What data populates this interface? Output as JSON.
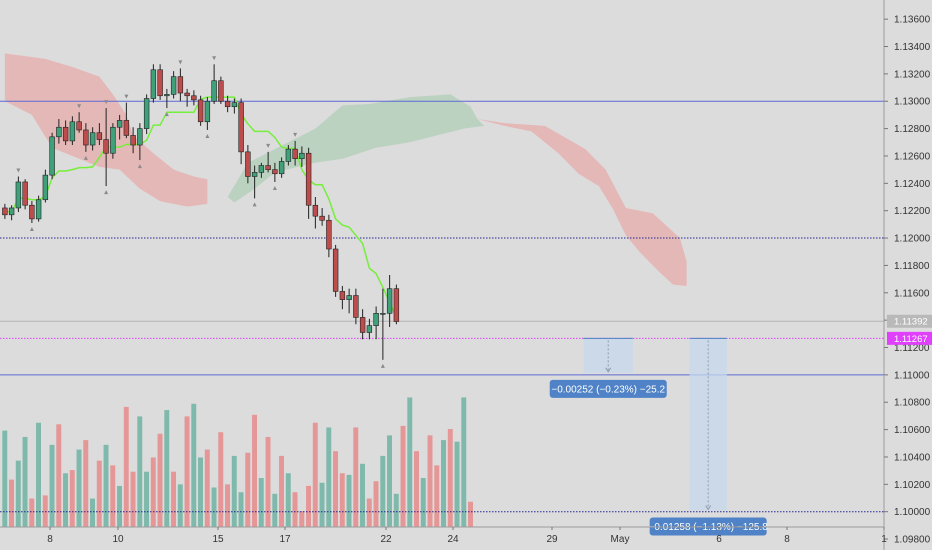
{
  "chart_data": {
    "type": "candlestick",
    "price_axis": {
      "labels": [
        "1.13600",
        "1.13400",
        "1.13200",
        "1.13000",
        "1.12800",
        "1.12600",
        "1.12400",
        "1.12200",
        "1.12000",
        "1.11800",
        "1.11600",
        "1.11400",
        "1.11200",
        "1.11000",
        "1.10800",
        "1.10600",
        "1.10400",
        "1.10200",
        "1.10000",
        "1.09800"
      ],
      "ylim": [
        1.0972,
        1.1374
      ]
    },
    "time_axis": {
      "labels": [
        "8",
        "10",
        "15",
        "17",
        "22",
        "24",
        "29",
        "May",
        "6",
        "8",
        "1"
      ]
    },
    "price_tags": [
      {
        "label": "1.11392",
        "value": 1.11392,
        "color": "#b9b9b9"
      },
      {
        "label": "1.11267",
        "value": 1.11267,
        "color": "#e040fb"
      }
    ],
    "horizontal_lines": [
      {
        "value": 1.13,
        "color": "#5b6ad6",
        "style": "solid"
      },
      {
        "value": 1.12,
        "color": "#22278f",
        "style": "dotted"
      },
      {
        "value": 1.11,
        "color": "#5b6ad6",
        "style": "solid"
      },
      {
        "value": 1.1,
        "color": "#22278f",
        "style": "dotted"
      },
      {
        "value": 1.11392,
        "color": "#b4b4b4",
        "style": "solid"
      },
      {
        "value": 1.11267,
        "color": "#e040fb",
        "style": "dotted"
      }
    ],
    "measurements": [
      {
        "label": "−0.00252 (−0.23%) −25.2",
        "from": 1.11267,
        "to": 1.11015,
        "bar_from": 44,
        "bar_to": 47
      },
      {
        "label": "−0.01258 (−1.13%) −125.8",
        "from": 1.11267,
        "to": 1.10009,
        "bar_from": 52,
        "bar_to": 54
      }
    ],
    "bars_total": 70,
    "candles": [
      [
        1.1222,
        1.1225,
        1.1214,
        1.1217
      ],
      [
        1.1217,
        1.1224,
        1.1213,
        1.1222
      ],
      [
        1.1222,
        1.1245,
        1.1219,
        1.1241
      ],
      [
        1.1241,
        1.1243,
        1.1221,
        1.1224
      ],
      [
        1.1224,
        1.1227,
        1.1211,
        1.1214
      ],
      [
        1.1214,
        1.1231,
        1.1212,
        1.1228
      ],
      [
        1.1228,
        1.125,
        1.1226,
        1.1246
      ],
      [
        1.1246,
        1.1277,
        1.1243,
        1.1274
      ],
      [
        1.1274,
        1.1287,
        1.1269,
        1.1281
      ],
      [
        1.1281,
        1.1286,
        1.1268,
        1.1271
      ],
      [
        1.1271,
        1.1289,
        1.1268,
        1.1285
      ],
      [
        1.1285,
        1.1292,
        1.1277,
        1.1279
      ],
      [
        1.1279,
        1.1284,
        1.1263,
        1.1268
      ],
      [
        1.1268,
        1.1281,
        1.1264,
        1.1277
      ],
      [
        1.1277,
        1.1284,
        1.1268,
        1.1272
      ],
      [
        1.1272,
        1.1295,
        1.1238,
        1.1262
      ],
      [
        1.1262,
        1.1284,
        1.1258,
        1.1281
      ],
      [
        1.1281,
        1.129,
        1.1272,
        1.1286
      ],
      [
        1.1286,
        1.1299,
        1.1273,
        1.1275
      ],
      [
        1.1275,
        1.1281,
        1.1262,
        1.1268
      ],
      [
        1.1268,
        1.1284,
        1.1257,
        1.128
      ],
      [
        1.128,
        1.1305,
        1.1276,
        1.1302
      ],
      [
        1.1302,
        1.1327,
        1.1299,
        1.1323
      ],
      [
        1.1323,
        1.1327,
        1.1301,
        1.1304
      ],
      [
        1.1304,
        1.1309,
        1.1295,
        1.1305
      ],
      [
        1.1305,
        1.1322,
        1.1302,
        1.1318
      ],
      [
        1.1318,
        1.1324,
        1.13,
        1.1306
      ],
      [
        1.1306,
        1.1309,
        1.1296,
        1.1304
      ],
      [
        1.1304,
        1.1308,
        1.1297,
        1.1301
      ],
      [
        1.1301,
        1.1304,
        1.1282,
        1.1285
      ],
      [
        1.1285,
        1.1303,
        1.1279,
        1.13
      ],
      [
        1.13,
        1.1327,
        1.1298,
        1.1315
      ],
      [
        1.1315,
        1.1318,
        1.1298,
        1.13
      ],
      [
        1.13,
        1.1304,
        1.1292,
        1.1296
      ],
      [
        1.1296,
        1.1302,
        1.1291,
        1.1299
      ],
      [
        1.1299,
        1.1302,
        1.1254,
        1.1263
      ],
      [
        1.1263,
        1.1268,
        1.124,
        1.1245
      ],
      [
        1.1245,
        1.1253,
        1.1229,
        1.1248
      ],
      [
        1.1248,
        1.1255,
        1.1244,
        1.1253
      ],
      [
        1.1253,
        1.1263,
        1.1248,
        1.125
      ],
      [
        1.125,
        1.1255,
        1.1241,
        1.1247
      ],
      [
        1.1247,
        1.1259,
        1.1244,
        1.1256
      ],
      [
        1.1256,
        1.1268,
        1.1253,
        1.1265
      ],
      [
        1.1265,
        1.1271,
        1.1253,
        1.1258
      ],
      [
        1.1258,
        1.1267,
        1.1252,
        1.1262
      ],
      [
        1.1262,
        1.1266,
        1.1214,
        1.1224
      ],
      [
        1.1224,
        1.123,
        1.1207,
        1.1216
      ],
      [
        1.1216,
        1.1222,
        1.1209,
        1.1213
      ],
      [
        1.1213,
        1.1217,
        1.1186,
        1.1192
      ],
      [
        1.1192,
        1.1195,
        1.1157,
        1.1161
      ],
      [
        1.1161,
        1.1165,
        1.1148,
        1.1155
      ],
      [
        1.1155,
        1.1163,
        1.1145,
        1.1158
      ],
      [
        1.1158,
        1.1163,
        1.1137,
        1.1142
      ],
      [
        1.1142,
        1.1148,
        1.1126,
        1.1131
      ],
      [
        1.1131,
        1.1141,
        1.1126,
        1.1136
      ],
      [
        1.1136,
        1.115,
        1.1126,
        1.1145
      ],
      [
        1.1145,
        1.1163,
        1.1111,
        1.1145
      ],
      [
        1.1145,
        1.1173,
        1.1135,
        1.1163
      ],
      [
        1.1163,
        1.1166,
        1.1137,
        1.1139
      ]
    ],
    "volume": [
      {
        "v": 0.61,
        "up": true
      },
      {
        "v": 0.3,
        "up": false
      },
      {
        "v": 0.42,
        "up": true
      },
      {
        "v": 0.57,
        "up": true
      },
      {
        "v": 0.18,
        "up": false
      },
      {
        "v": 0.66,
        "up": true
      },
      {
        "v": 0.2,
        "up": false
      },
      {
        "v": 0.52,
        "up": true
      },
      {
        "v": 0.65,
        "up": false
      },
      {
        "v": 0.34,
        "up": true
      },
      {
        "v": 0.36,
        "up": false
      },
      {
        "v": 0.49,
        "up": true
      },
      {
        "v": 0.55,
        "up": false
      },
      {
        "v": 0.18,
        "up": true
      },
      {
        "v": 0.42,
        "up": false
      },
      {
        "v": 0.52,
        "up": true
      },
      {
        "v": 0.39,
        "up": false
      },
      {
        "v": 0.26,
        "up": true
      },
      {
        "v": 0.76,
        "up": false
      },
      {
        "v": 0.35,
        "up": false
      },
      {
        "v": 0.7,
        "up": true
      },
      {
        "v": 0.35,
        "up": true
      },
      {
        "v": 0.44,
        "up": false
      },
      {
        "v": 0.59,
        "up": false
      },
      {
        "v": 0.74,
        "up": true
      },
      {
        "v": 0.35,
        "up": false
      },
      {
        "v": 0.27,
        "up": true
      },
      {
        "v": 0.7,
        "up": false
      },
      {
        "v": 0.78,
        "up": true
      },
      {
        "v": 0.44,
        "up": true
      },
      {
        "v": 0.49,
        "up": false
      },
      {
        "v": 0.25,
        "up": true
      },
      {
        "v": 0.6,
        "up": false
      },
      {
        "v": 0.27,
        "up": false
      },
      {
        "v": 0.45,
        "up": true
      },
      {
        "v": 0.22,
        "up": true
      },
      {
        "v": 0.47,
        "up": false
      },
      {
        "v": 0.71,
        "up": false
      },
      {
        "v": 0.31,
        "up": true
      },
      {
        "v": 0.57,
        "up": false
      },
      {
        "v": 0.21,
        "up": true
      },
      {
        "v": 0.45,
        "up": false
      },
      {
        "v": 0.34,
        "up": true
      },
      {
        "v": 0.22,
        "up": false
      },
      {
        "v": 0.1,
        "up": false
      },
      {
        "v": 0.26,
        "up": false
      },
      {
        "v": 0.66,
        "up": false
      },
      {
        "v": 0.28,
        "up": true
      },
      {
        "v": 0.63,
        "up": true
      },
      {
        "v": 0.48,
        "up": false
      },
      {
        "v": 0.34,
        "up": false
      },
      {
        "v": 0.33,
        "up": true
      },
      {
        "v": 0.63,
        "up": false
      },
      {
        "v": 0.4,
        "up": true
      },
      {
        "v": 0.18,
        "up": false
      },
      {
        "v": 0.29,
        "up": false
      },
      {
        "v": 0.45,
        "up": true
      },
      {
        "v": 0.58,
        "up": true
      },
      {
        "v": 0.21,
        "up": true
      },
      {
        "v": 0.64,
        "up": false
      },
      {
        "v": 0.82,
        "up": true
      },
      {
        "v": 0.48,
        "up": false
      },
      {
        "v": 0.31,
        "up": true
      },
      {
        "v": 0.58,
        "up": false
      },
      {
        "v": 0.39,
        "up": false
      },
      {
        "v": 0.55,
        "up": true
      },
      {
        "v": 0.62,
        "up": false
      },
      {
        "v": 0.54,
        "up": true
      },
      {
        "v": 0.82,
        "up": true
      },
      {
        "v": 0.16,
        "up": false
      }
    ],
    "colors": {
      "background": "#dcdcdc",
      "up": "#3fa07a",
      "down": "#bd4d4d",
      "volume_up": "#7fb9ac",
      "volume_down": "#e59696",
      "kumo_bear": "#e6b1b1",
      "kumo_bull": "#b8d0be",
      "kijun": "#76ee3c"
    }
  }
}
